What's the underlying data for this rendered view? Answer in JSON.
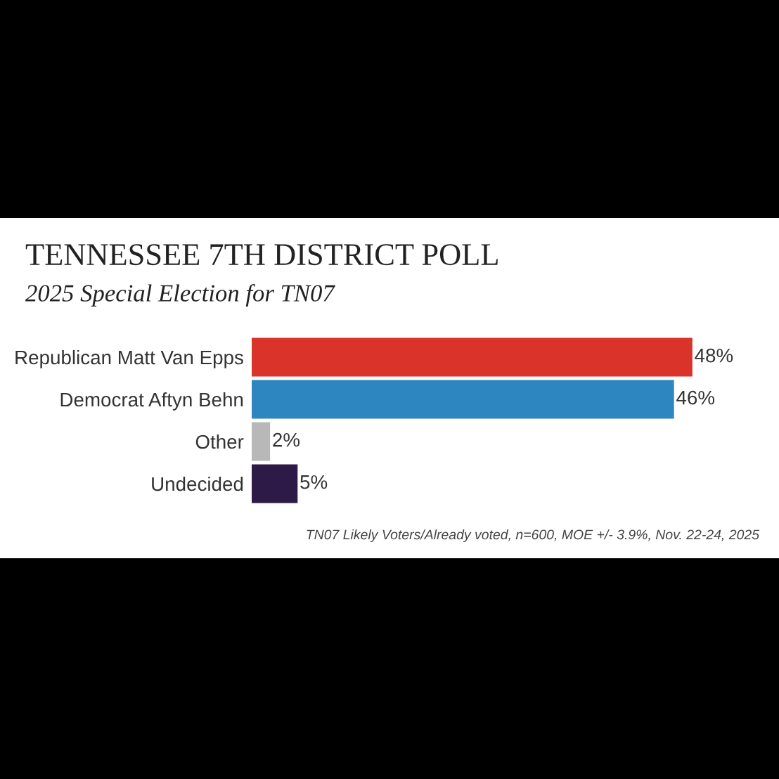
{
  "chart_data": {
    "type": "bar",
    "orientation": "horizontal",
    "title": "TENNESSEE 7TH DISTRICT POLL",
    "subtitle": "2025 Special Election for TN07",
    "categories": [
      "Republican Matt Van Epps",
      "Democrat Aftyn Behn",
      "Other",
      "Undecided"
    ],
    "values": [
      48,
      46,
      2,
      5
    ],
    "colors": [
      "#d9332a",
      "#2e86c1",
      "#b8b8b8",
      "#2e1a47"
    ],
    "value_labels": [
      "48%",
      "46%",
      "2%",
      "5%"
    ],
    "annotations": [
      "TN07 Likely Voters/Already voted, n=600, MOE +/- 3.9%, Nov. 22-24, 2025"
    ],
    "grid": false,
    "legend": false,
    "tick_labels": "y"
  }
}
